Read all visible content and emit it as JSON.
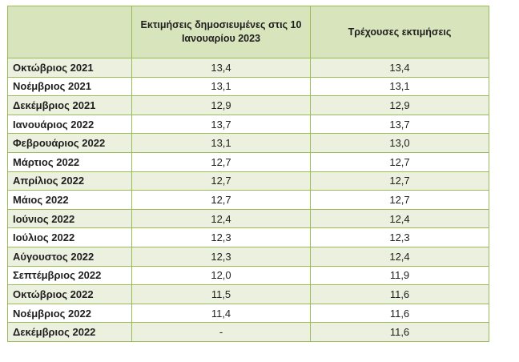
{
  "table": {
    "headers": {
      "month": "",
      "published": "Εκτιμήσεις δημοσιευμένες στις 10 Ιανουαρίου 2023",
      "current": "Τρέχουσες εκτιμήσεις"
    },
    "rows": [
      {
        "month": "Οκτώβριος 2021",
        "published": "13,4",
        "current": "13,4"
      },
      {
        "month": "Νοέμβριος 2021",
        "published": "13,1",
        "current": "13,1"
      },
      {
        "month": "Δεκέμβριος 2021",
        "published": "12,9",
        "current": "12,9"
      },
      {
        "month": "Ιανουάριος 2022",
        "published": "13,7",
        "current": "13,7"
      },
      {
        "month": "Φεβρουάριος 2022",
        "published": "13,1",
        "current": "13,0"
      },
      {
        "month": "Μάρτιος 2022",
        "published": "12,7",
        "current": "12,7"
      },
      {
        "month": "Απρίλιος 2022",
        "published": "12,7",
        "current": "12,7"
      },
      {
        "month": "Μάιος 2022",
        "published": "12,7",
        "current": "12,7"
      },
      {
        "month": "Ιούνιος 2022",
        "published": "12,4",
        "current": "12,4"
      },
      {
        "month": "Ιούλιος 2022",
        "published": "12,3",
        "current": "12,3"
      },
      {
        "month": "Αύγουστος 2022",
        "published": "12,3",
        "current": "12,4"
      },
      {
        "month": "Σεπτέμβριος 2022",
        "published": "12,0",
        "current": "11,9"
      },
      {
        "month": "Οκτώβριος 2022",
        "published": "11,5",
        "current": "11,6"
      },
      {
        "month": "Νοέμβριος 2022",
        "published": "11,4",
        "current": "11,6"
      },
      {
        "month": "Δεκέμβριος 2022",
        "published": "-",
        "current": "11,6"
      }
    ],
    "colors": {
      "border": "#9bbb59",
      "header_fill": "#d8e4bc",
      "band_fill": "#ebf1de",
      "plain_fill": "#ffffff"
    }
  }
}
